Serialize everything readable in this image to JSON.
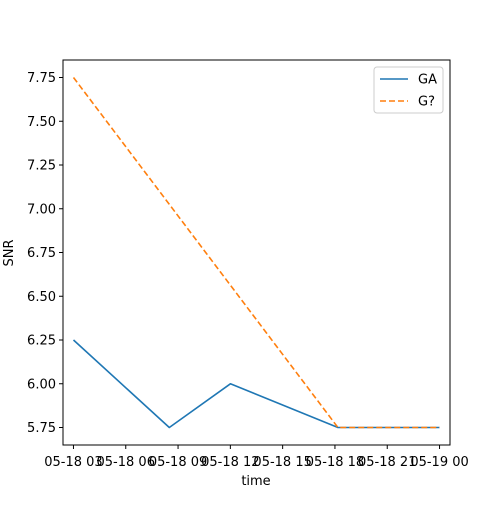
{
  "chart_data": {
    "type": "line",
    "title": "",
    "xlabel": "time",
    "ylabel": "SNR",
    "x_tick_labels": [
      "05-18 03",
      "05-18 06",
      "05-18 09",
      "05-18 12",
      "05-18 15",
      "05-18 18",
      "05-18 21",
      "05-19 00"
    ],
    "y_tick_labels": [
      "5.75",
      "6.00",
      "6.25",
      "6.50",
      "6.75",
      "7.00",
      "7.25",
      "7.50",
      "7.75"
    ],
    "x_range": [
      "05-18 02:24",
      "05-19 00:36"
    ],
    "ylim": [
      5.65,
      7.85
    ],
    "grid": false,
    "legend_position": "top-right",
    "series": [
      {
        "name": "GA",
        "color": "#1f77b4",
        "style": "solid",
        "x": [
          "05-18 03:00",
          "05-18 08:30",
          "05-18 12:00",
          "05-18 18:10",
          "05-19 00:00"
        ],
        "values": [
          6.25,
          5.75,
          6.0,
          5.75,
          5.75
        ]
      },
      {
        "name": "G?",
        "color": "#ff7f0e",
        "style": "dashed",
        "x": [
          "05-18 03:00",
          "05-18 18:10",
          "05-19 00:00"
        ],
        "values": [
          7.75,
          5.75,
          5.75
        ]
      }
    ]
  }
}
